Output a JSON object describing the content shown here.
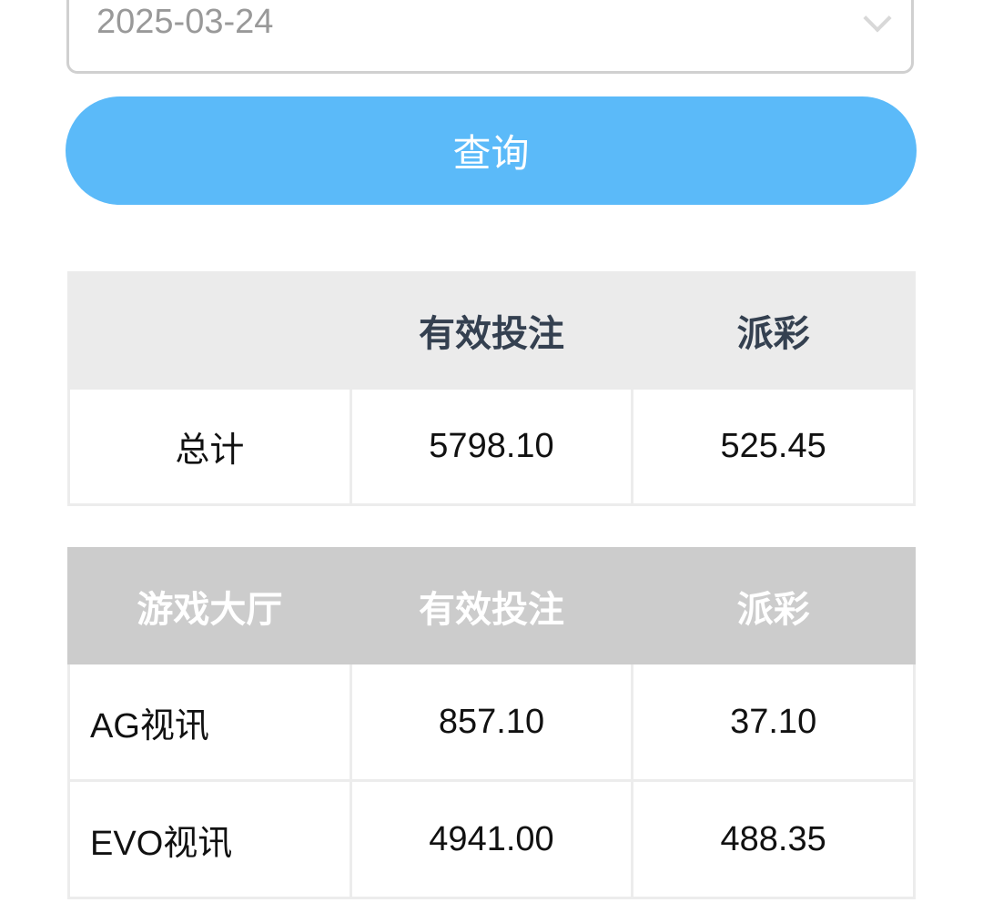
{
  "filter": {
    "date": "2025-03-24"
  },
  "query_button": "查询",
  "summary": {
    "headers": [
      "",
      "有效投注",
      "派彩"
    ],
    "rows": [
      [
        "总计",
        "5798.10",
        "525.45"
      ]
    ]
  },
  "detail": {
    "headers": [
      "游戏大厅",
      "有效投注",
      "派彩"
    ],
    "rows": [
      [
        "AG视讯",
        "857.10",
        "37.10"
      ],
      [
        "EVO视讯",
        "4941.00",
        "488.35"
      ]
    ]
  },
  "colors": {
    "button": "#5bbaf9",
    "summary_header": "#ebebeb",
    "detail_header": "#cccccc"
  }
}
